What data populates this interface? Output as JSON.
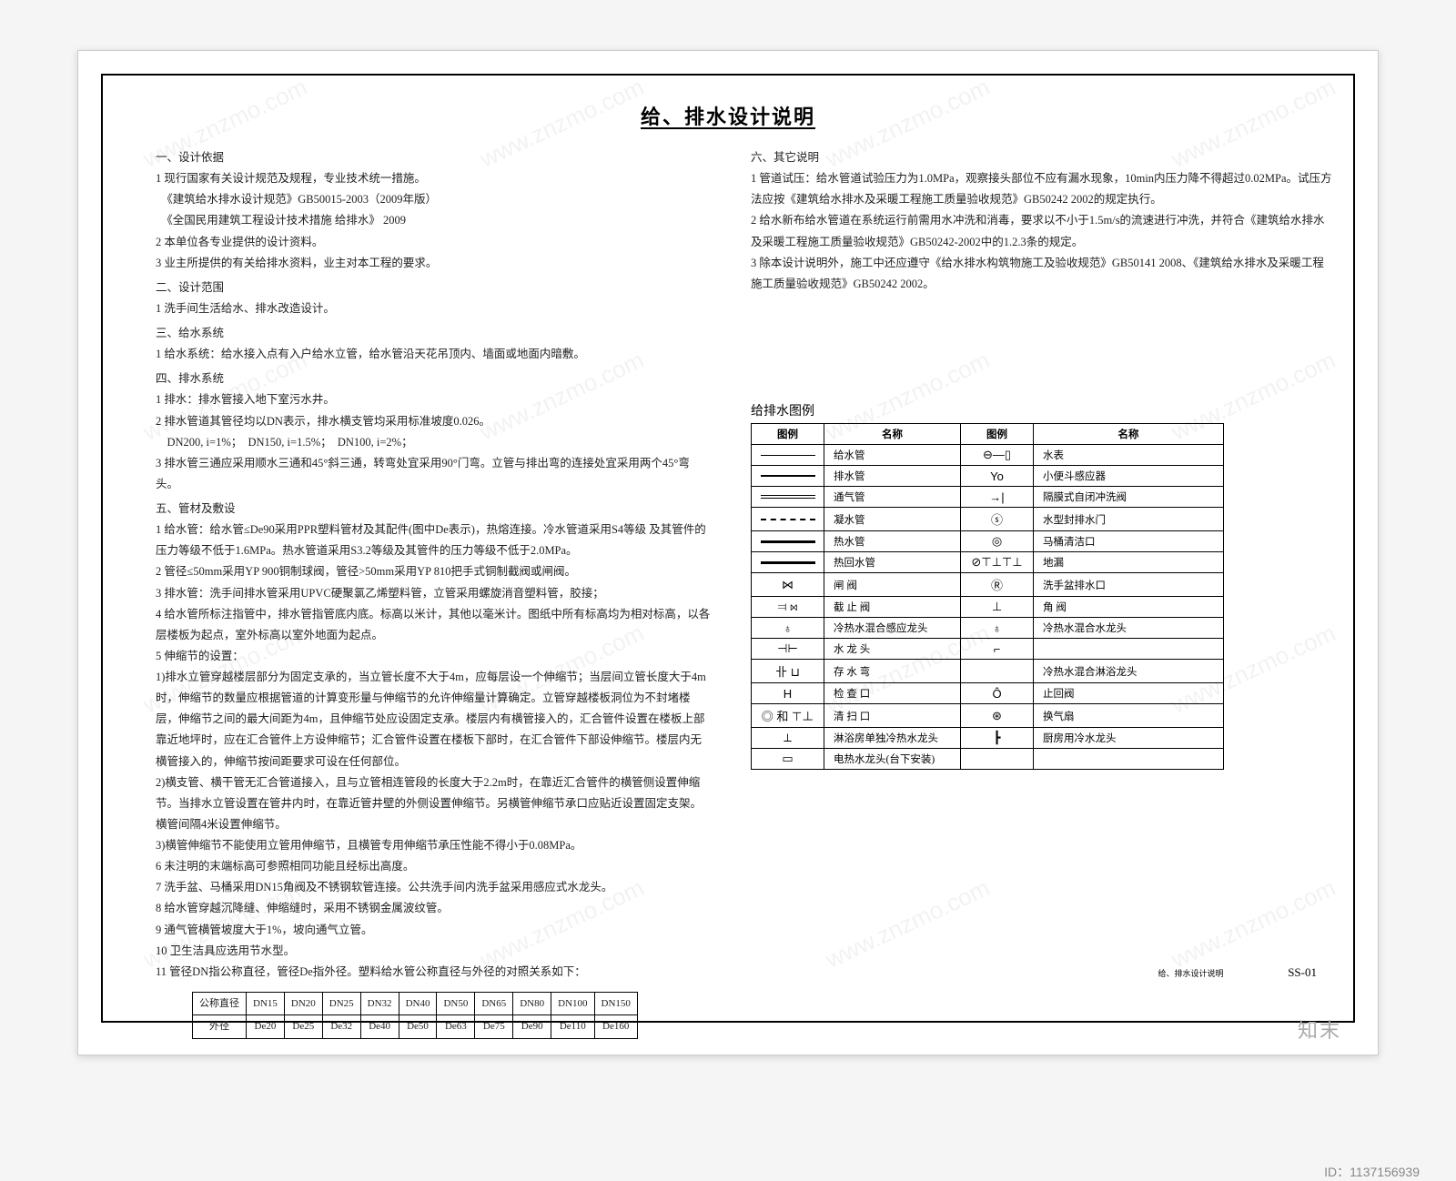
{
  "title": "给、排水设计说明",
  "watermark_text": "www.znzmo.com",
  "brand_watermark": "知末",
  "image_id": "ID：1137156939",
  "footer": {
    "label": "给、排水设计说明",
    "sheet": "SS-01"
  },
  "sections_left": [
    {
      "head": "一、设计依据",
      "lines": [
        "1 现行国家有关设计规范及规程，专业技术统一措施。",
        "　《建筑给水排水设计规范》GB50015-2003（2009年版）",
        "　《全国民用建筑工程设计技术措施  给排水》 2009",
        "2 本单位各专业提供的设计资料。",
        "3 业主所提供的有关给排水资料，业主对本工程的要求。"
      ]
    },
    {
      "head": "二、设计范围",
      "lines": [
        "1 洗手间生活给水、排水改造设计。"
      ]
    },
    {
      "head": "三、给水系统",
      "lines": [
        "1 给水系统：给水接入点有入户给水立管，给水管沿天花吊顶内、墙面或地面内暗敷。"
      ]
    },
    {
      "head": "四、排水系统",
      "lines": [
        "1 排水：排水管接入地下室污水井。",
        "2 排水管道其管径均以DN表示，排水横支管均采用标准坡度0.026。",
        "　DN200, i=1%；　DN150, i=1.5%；　DN100, i=2%；",
        "3 排水管三通应采用顺水三通和45°斜三通，转弯处宜采用90°门弯。立管与排出弯的连接处宜采用两个45°弯头。"
      ]
    },
    {
      "head": "五、管材及敷设",
      "lines": [
        "1 给水管：给水管≤De90采用PPR塑料管材及其配件(图中De表示)，热熔连接。冷水管道采用S4等级  及其管件的压力等级不低于1.6MPa。热水管道采用S3.2等级及其管件的压力等级不低于2.0MPa。",
        "2 管径≤50mm采用YP 900铜制球阀，管径>50mm采用YP 810把手式铜制截阀或闸阀。",
        "3 排水管：洗手间排水管采用UPVC硬聚氯乙烯塑料管，立管采用螺旋消音塑料管，胶接；",
        "4 给水管所标注指管中，排水管指管底内底。标高以米计，其他以毫米计。图纸中所有标高均为相对标高，以各层楼板为起点，室外标高以室外地面为起点。",
        "5 伸缩节的设置：",
        "1)排水立管穿越楼层部分为固定支承的，当立管长度不大于4m，应每层设一个伸缩节；当层间立管长度大于4m时，伸缩节的数量应根据管道的计算变形量与伸缩节的允许伸缩量计算确定。立管穿越楼板洞位为不封堵楼层，伸缩节之间的最大间距为4m，且伸缩节处应设固定支承。楼层内有横管接入的，汇合管件设置在楼板上部靠近地坪时，应在汇合管件上方设伸缩节；汇合管件设置在楼板下部时，在汇合管件下部设伸缩节。楼层内无横管接入的，伸缩节按间距要求可设在任何部位。",
        "2)横支管、横干管无汇合管道接入，且与立管相连管段的长度大于2.2m时，在靠近汇合管件的横管侧设置伸缩节。当排水立管设置在管井内时，在靠近管井壁的外侧设置伸缩节。另横管伸缩节承口应贴近设置固定支架。横管间隔4米设置伸缩节。",
        "3)横管伸缩节不能使用立管用伸缩节，且横管专用伸缩节承压性能不得小于0.08MPa。",
        "6 未注明的末端标高可参照相同功能且经标出高度。",
        "7 洗手盆、马桶采用DN15角阀及不锈钢软管连接。公共洗手间内洗手盆采用感应式水龙头。",
        "8 给水管穿越沉降缝、伸缩缝时，采用不锈钢金属波纹管。",
        "9 通气管横管坡度大于1%，坡向通气立管。",
        "10 卫生洁具应选用节水型。",
        "11 管径DN指公称直径，管径De指外径。塑料给水管公称直径与外径的对照关系如下："
      ]
    }
  ],
  "pipe_table": {
    "rows": [
      [
        "公称直径",
        "DN15",
        "DN20",
        "DN25",
        "DN32",
        "DN40",
        "DN50",
        "DN65",
        "DN80",
        "DN100",
        "DN150"
      ],
      [
        "外径",
        "De20",
        "De25",
        "De32",
        "De40",
        "De50",
        "De63",
        "De75",
        "De90",
        "De110",
        "De160"
      ]
    ]
  },
  "sections_right": [
    {
      "head": "六、其它说明",
      "lines": [
        "1 管道试压：给水管道试验压力为1.0MPa，观察接头部位不应有漏水现象，10min内压力降不得超过0.02MPa。试压方法应按《建筑给水排水及采暖工程施工质量验收规范》GB50242 2002的规定执行。",
        "2 给水新布给水管道在系统运行前需用水冲洗和消毒，要求以不小于1.5m/s的流速进行冲洗，并符合《建筑给水排水及采暖工程施工质量验收规范》GB50242-2002中的1.2.3条的规定。",
        "3 除本设计说明外，施工中还应遵守《给水排水构筑物施工及验收规范》GB50141 2008、《建筑给水排水及采暖工程施工质量验收规范》GB50242 2002。"
      ]
    }
  ],
  "legend": {
    "title": "给排水图例",
    "headers": [
      "图例",
      "名称",
      "图例",
      "名称"
    ],
    "rows": [
      {
        "s1": "thin",
        "n1": "给水管",
        "s2": "meter",
        "n2": "水表"
      },
      {
        "s1": "med",
        "n1": "排水管",
        "s2": "Yo",
        "n2": "小便斗感应器"
      },
      {
        "s1": "dbl",
        "n1": "通气管",
        "s2": "arrow",
        "n2": "隔膜式自闭冲洗阀"
      },
      {
        "s1": "dash",
        "n1": "凝水管",
        "s2": "circS",
        "n2": "水型封排水门"
      },
      {
        "s1": "thick",
        "n1": "热水管",
        "s2": "circC",
        "n2": "马桶清洁口"
      },
      {
        "s1": "thick",
        "n1": "热回水管",
        "s2": "drain",
        "n2": "地漏"
      },
      {
        "s1": "bowtie",
        "n1": "闸 阀",
        "s2": "circR",
        "n2": "洗手盆排水口"
      },
      {
        "s1": "checkv",
        "n1": "截 止 阀",
        "s2": "angle",
        "n2": "角 阀"
      },
      {
        "s1": "faucet",
        "n1": "冷热水混合感应龙头",
        "s2": "faucet2",
        "n2": "冷热水混合水龙头"
      },
      {
        "s1": "tap",
        "n1": "水 龙 头",
        "s2": "riser",
        "n2": ""
      },
      {
        "s1": "exist",
        "n1": "存 水 弯",
        "s2": "",
        "n2": "冷热水混合淋浴龙头"
      },
      {
        "s1": "H",
        "n1": "检 查 口",
        "s2": "stopv",
        "n2": "止回阀"
      },
      {
        "s1": "clamp",
        "n1": "清 扫 口",
        "s2": "fan",
        "n2": "换气扇"
      },
      {
        "s1": "mono",
        "n1": "淋浴房单独冷热水龙头",
        "s2": "heater",
        "n2": "厨房用冷水龙头"
      },
      {
        "s1": "box",
        "n1": "电热水龙头(台下安装)",
        "s2": "",
        "n2": ""
      }
    ]
  }
}
